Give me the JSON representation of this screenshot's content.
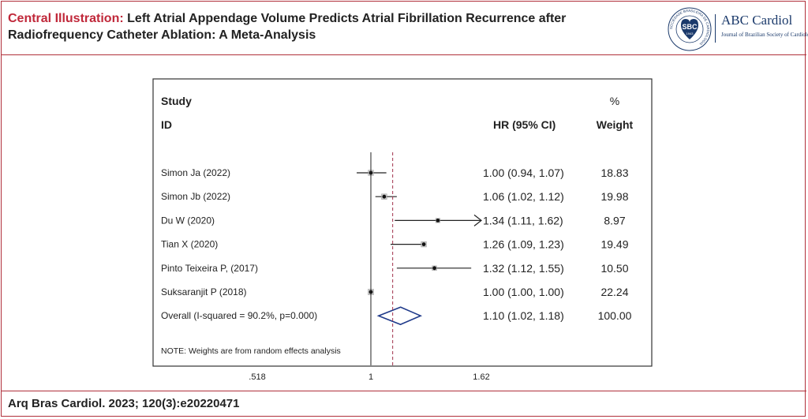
{
  "header": {
    "title_lead": "Central Illustration:",
    "title_text": "Left Atrial Appendage Volume Predicts Atrial Fibrillation Recurrence after Radiofrequency Catheter Ablation: A Meta-Analysis",
    "logo_seal_text": "SOCIEDADE BRASILEIRA DE CARDIOLOGIA",
    "logo_seal_abbr": "SBC",
    "logo_seal_year": "1943",
    "brand_name": "ABC Cardiol",
    "brand_sub": "Journal of Brazilian Society of Cardiology"
  },
  "colors": {
    "accent": "#c0283a",
    "border": "#b0303a",
    "diamond": "#1f3a8a",
    "reference_line": "#a0304a"
  },
  "chart_data": {
    "type": "forest",
    "headers": {
      "study_line1": "Study",
      "study_line2": "ID",
      "hr": "HR (95% CI)",
      "weight_line1": "%",
      "weight_line2": "Weight"
    },
    "studies": [
      {
        "label": "Simon Ja (2022)",
        "hr": 1.0,
        "lo": 0.94,
        "hi": 1.07,
        "ci_text": "1.00 (0.94, 1.07)",
        "weight": "18.83"
      },
      {
        "label": "Simon Jb (2022)",
        "hr": 1.06,
        "lo": 1.02,
        "hi": 1.12,
        "ci_text": "1.06 (1.02, 1.12)",
        "weight": "19.98"
      },
      {
        "label": "Du W (2020)",
        "hr": 1.34,
        "lo": 1.11,
        "hi": 1.62,
        "ci_text": "1.34 (1.11, 1.62)",
        "weight": "8.97",
        "arrow": true
      },
      {
        "label": "Tian X (2020)",
        "hr": 1.26,
        "lo": 1.09,
        "hi": 1.23,
        "ci_text": "1.26 (1.09, 1.23)",
        "weight": "19.49"
      },
      {
        "label": "Pinto Teixeira P, (2017)",
        "hr": 1.32,
        "lo": 1.12,
        "hi": 1.55,
        "ci_text": "1.32 (1.12, 1.55)",
        "weight": "10.50"
      },
      {
        "label": "Suksaranjit P (2018)",
        "hr": 1.0,
        "lo": 1.0,
        "hi": 1.0,
        "ci_text": "1.00 (1.00, 1.00)",
        "weight": "22.24"
      }
    ],
    "overall": {
      "label": "Overall (I-squared = 90.2%, p=0.000)",
      "hr": 1.1,
      "lo": 1.02,
      "hi": 1.18,
      "ci_text": "1.10 (1.02, 1.18)",
      "weight": "100.00"
    },
    "note": "NOTE: Weights are from random effects analysis",
    "x_ticks": [
      ".518",
      "1",
      "1.62"
    ],
    "null_value": 1
  },
  "footer": {
    "citation": "Arq Bras Cardiol. 2023; 120(3):e20220471"
  }
}
